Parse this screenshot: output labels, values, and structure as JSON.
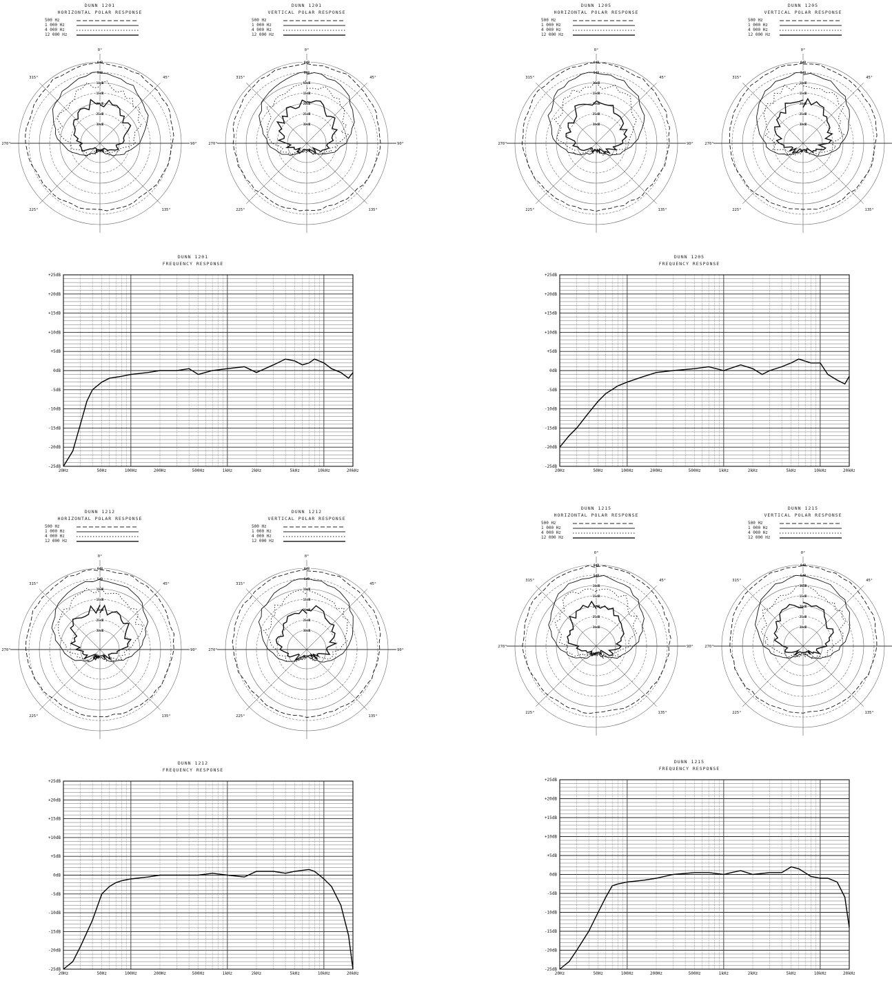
{
  "legend_labels": [
    "500 Hz",
    "1 000 Hz",
    "4 000 Hz",
    "12 000 Hz"
  ],
  "polar_blocks": [
    {
      "id": "1201",
      "left": {
        "line1": "DUNN 1201",
        "line2": "HORIZONTAL POLAR RESPONSE"
      },
      "right": {
        "line1": "DUNN 1201",
        "line2": "VERTICAL POLAR RESPONSE"
      }
    },
    {
      "id": "1205",
      "left": {
        "line1": "DUNN 1205",
        "line2": "HORIZONTAL POLAR RESPONSE"
      },
      "right": {
        "line1": "DUNN 1205",
        "line2": "VERTICAL POLAR RESPONSE"
      }
    },
    {
      "id": "1212",
      "left": {
        "line1": "DUNN 1212",
        "line2": "HORIZONTAL POLAR RESPONSE"
      },
      "right": {
        "line1": "DUNN 1212",
        "line2": "VERTICAL POLAR RESPONSE"
      }
    },
    {
      "id": "1215",
      "left": {
        "line1": "DUNN 1215",
        "line2": "HORIZONTAL POLAR RESPONSE"
      },
      "right": {
        "line1": "DUNN 1215",
        "line2": "VERTICAL POLAR RESPONSE"
      }
    }
  ],
  "polar_angle_labels": [
    "0°",
    "45°",
    "90°",
    "135°",
    "180°",
    "225°",
    "270°",
    "315°"
  ],
  "polar_ring_labels": [
    "0dB",
    "5dB",
    "10dB",
    "15dB",
    "20dB",
    "25dB",
    "30dB"
  ],
  "freq_x_ticks": [
    "20Hz",
    "50Hz",
    "100Hz",
    "200Hz",
    "500Hz",
    "1kHz",
    "2kHz",
    "5kHz",
    "10kHz",
    "20kHz"
  ],
  "freq_y_ticks": [
    "+25dB",
    "+20dB",
    "+15dB",
    "+10dB",
    "+5dB",
    "0dB",
    "-5dB",
    "-10dB",
    "-15dB",
    "-20dB",
    "-25dB"
  ],
  "chart_data": [
    {
      "type": "line",
      "title": "DUNN 1201",
      "subtitle": "FREQUENCY RESPONSE",
      "xlim": [
        20,
        20000
      ],
      "ylim": [
        -25,
        25
      ],
      "x_scale": "log",
      "grid": true,
      "series": [
        {
          "x": [
            20,
            25,
            30,
            35,
            40,
            50,
            60,
            80,
            100,
            150,
            200,
            300,
            400,
            500,
            700,
            1000,
            1500,
            2000,
            3000,
            4000,
            5000,
            6000,
            7000,
            8000,
            10000,
            12000,
            15000,
            18000,
            20000
          ],
          "y": [
            -25,
            -21,
            -14,
            -8,
            -5,
            -3,
            -2,
            -1.5,
            -1,
            -0.5,
            0,
            0,
            0.5,
            -1,
            0,
            0.5,
            1,
            -0.5,
            1.5,
            3,
            2.5,
            1.5,
            2,
            3,
            2,
            0.5,
            -0.5,
            -2,
            -0.5
          ]
        }
      ]
    },
    {
      "type": "line",
      "title": "DUNN 1205",
      "subtitle": "FREQUENCY RESPONSE",
      "xlim": [
        20,
        20000
      ],
      "ylim": [
        -25,
        25
      ],
      "x_scale": "log",
      "grid": true,
      "series": [
        {
          "x": [
            20,
            25,
            30,
            40,
            50,
            60,
            80,
            100,
            150,
            200,
            300,
            500,
            700,
            1000,
            1500,
            2000,
            2500,
            3000,
            4000,
            5000,
            6000,
            8000,
            10000,
            12000,
            15000,
            18000,
            20000
          ],
          "y": [
            -20,
            -17,
            -15,
            -11,
            -8,
            -6,
            -4,
            -3,
            -1.5,
            -0.5,
            0,
            0.5,
            1,
            0,
            1.5,
            0.5,
            -1,
            0,
            1,
            2,
            3,
            2,
            2,
            -1,
            -2.5,
            -3.5,
            -1.5
          ]
        }
      ]
    },
    {
      "type": "line",
      "title": "DUNN 1212",
      "subtitle": "FREQUENCY RESPONSE",
      "xlim": [
        20,
        20000
      ],
      "ylim": [
        -25,
        25
      ],
      "x_scale": "log",
      "grid": true,
      "series": [
        {
          "x": [
            20,
            25,
            30,
            40,
            50,
            60,
            70,
            80,
            100,
            150,
            200,
            300,
            500,
            700,
            1000,
            1500,
            2000,
            3000,
            4000,
            5000,
            7000,
            8000,
            10000,
            12000,
            15000,
            18000,
            20000
          ],
          "y": [
            -25,
            -23,
            -19,
            -12,
            -5,
            -3,
            -2,
            -1.5,
            -1,
            -0.5,
            0,
            0,
            0,
            0.5,
            0,
            -0.5,
            1,
            1,
            0.5,
            1,
            1.5,
            1,
            -1,
            -3,
            -8,
            -16,
            -25
          ]
        }
      ]
    },
    {
      "type": "line",
      "title": "DUNN 1215",
      "subtitle": "FREQUENCY RESPONSE",
      "xlim": [
        20,
        20000
      ],
      "ylim": [
        -25,
        25
      ],
      "x_scale": "log",
      "grid": true,
      "series": [
        {
          "x": [
            20,
            25,
            30,
            40,
            50,
            60,
            70,
            80,
            100,
            150,
            200,
            300,
            500,
            700,
            1000,
            1200,
            1500,
            2000,
            3000,
            4000,
            5000,
            6000,
            8000,
            10000,
            12000,
            15000,
            18000,
            20000
          ],
          "y": [
            -25,
            -23,
            -20,
            -15,
            -10,
            -6,
            -3,
            -2.5,
            -2,
            -1.5,
            -1,
            0,
            0.5,
            0.5,
            0,
            0.5,
            1,
            0,
            0.5,
            0.5,
            2,
            1.5,
            -0.5,
            -1,
            -1,
            -2,
            -6,
            -14
          ]
        }
      ]
    }
  ]
}
